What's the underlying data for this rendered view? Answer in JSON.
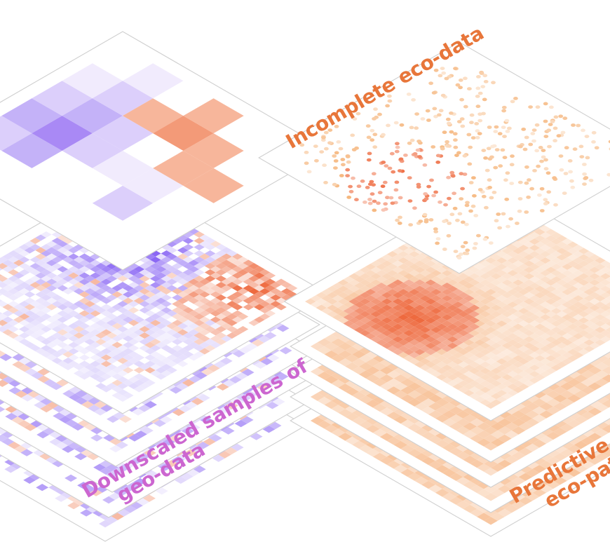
{
  "labels": {
    "incomplete": "Incomplete eco-data",
    "downscaled_line1": "Downscaled samples of",
    "downscaled_line2": "geo-data",
    "predictive_line1": "Predictive e",
    "predictive_line2": "eco-patt"
  },
  "colors": {
    "orange_label": "#e8763a",
    "purple_label": "#cc66d0",
    "frame": "#cfcfcf",
    "purple_strong": "#8a66f4",
    "purple_mid": "#b9a6f8",
    "purple_light": "#ebe3fd",
    "salmon": "#f39a78",
    "red_orange": "#ee6a3f",
    "orange_dot": "#f3a55f",
    "peach": "#fbd8b4",
    "peach_strong": "#f6b27e"
  }
}
